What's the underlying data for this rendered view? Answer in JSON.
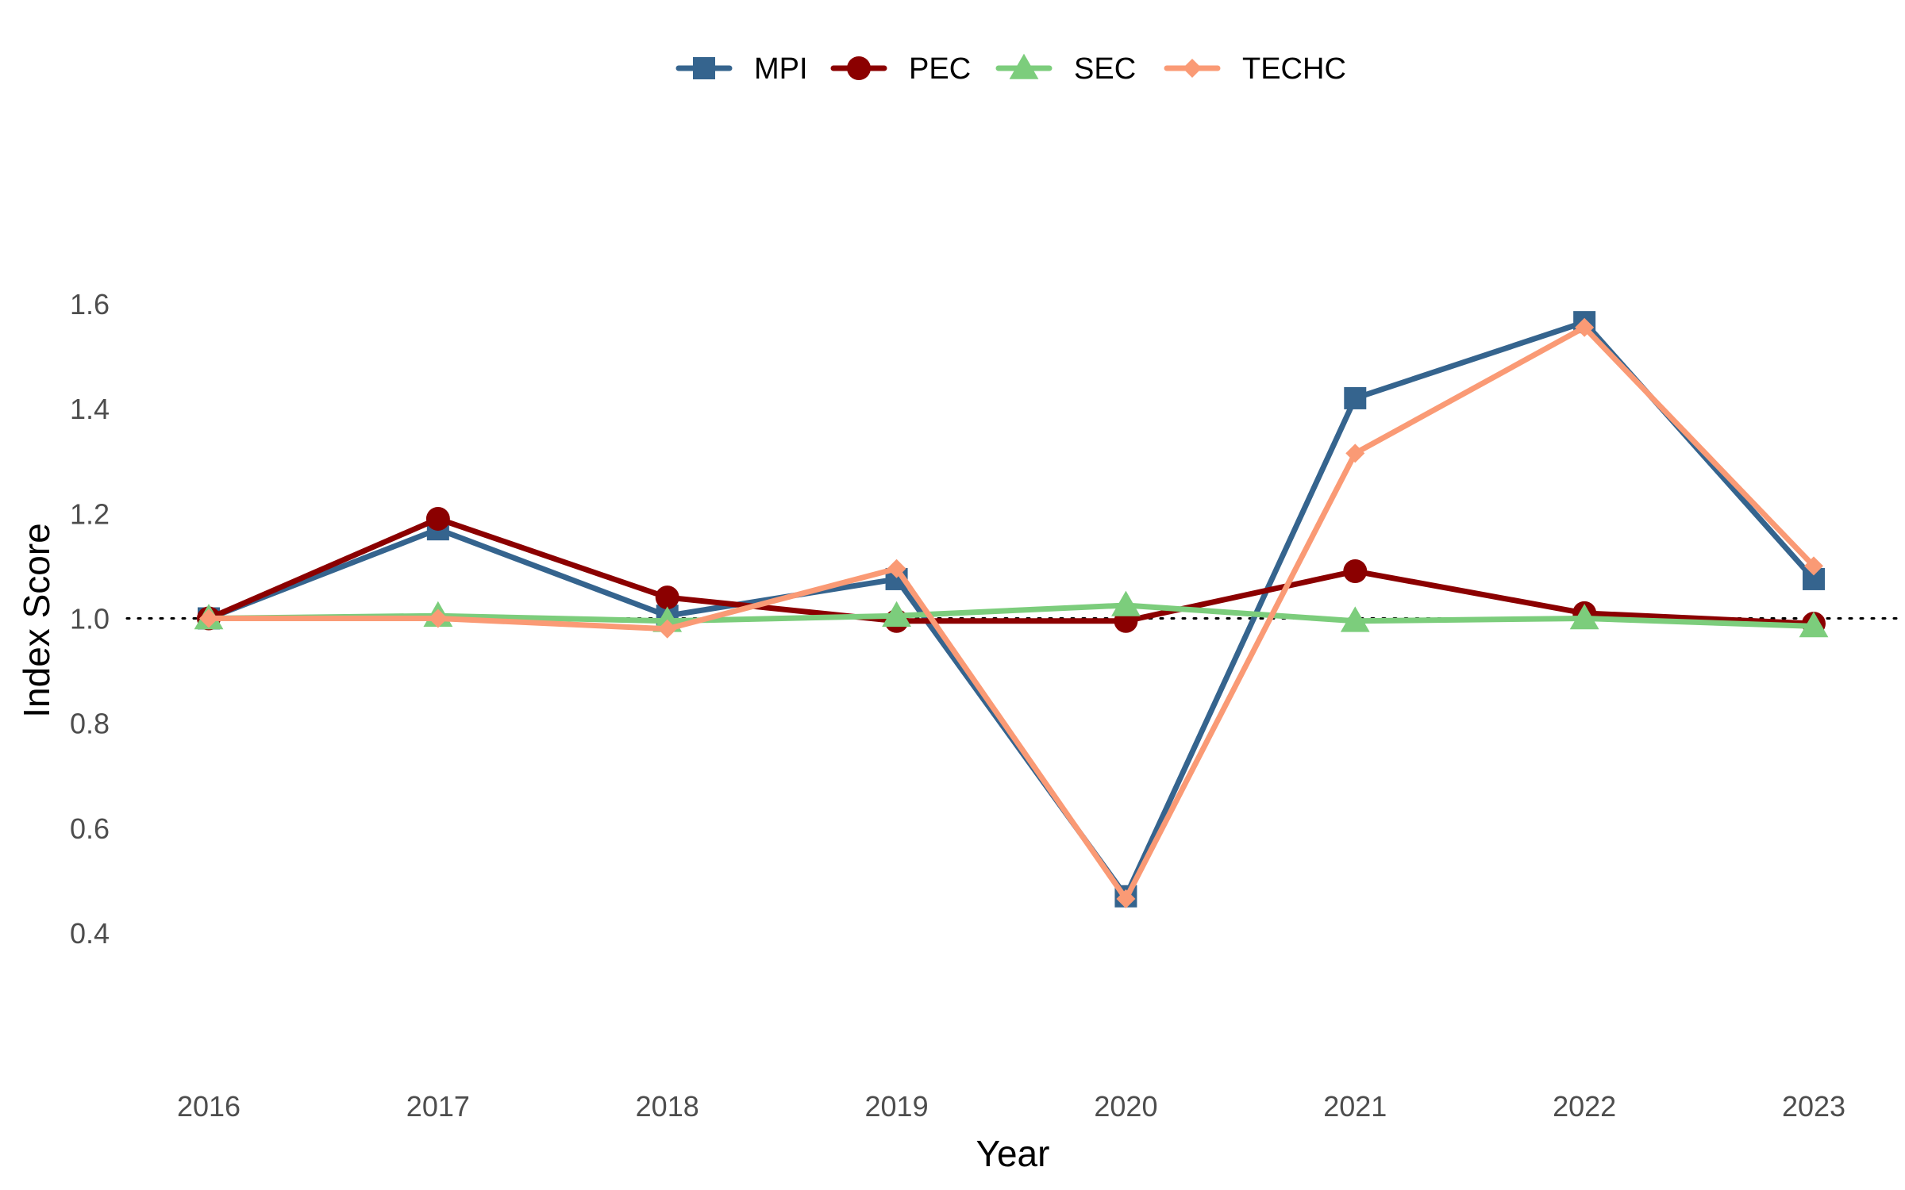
{
  "chart_data": {
    "type": "line",
    "xlabel": "Year",
    "ylabel": "Index Score",
    "categories": [
      "2016",
      "2017",
      "2018",
      "2019",
      "2020",
      "2021",
      "2022",
      "2023"
    ],
    "y_ticks": [
      "0.4",
      "0.6",
      "0.8",
      "1.0",
      "1.2",
      "1.4",
      "1.6"
    ],
    "ylim": [
      0.15,
      1.75
    ],
    "reference_line": 1.0,
    "grid": false,
    "legend_position": "top",
    "series": [
      {
        "name": "MPI",
        "color": "#35648e",
        "marker": "square",
        "values": [
          1.0,
          1.17,
          1.005,
          1.075,
          0.47,
          1.42,
          1.565,
          1.075
        ]
      },
      {
        "name": "PEC",
        "color": "#8b0000",
        "marker": "circle",
        "values": [
          1.0,
          1.19,
          1.04,
          0.995,
          0.995,
          1.09,
          1.01,
          0.99
        ]
      },
      {
        "name": "SEC",
        "color": "#7ccd7c",
        "marker": "triangle",
        "values": [
          1.0,
          1.005,
          0.995,
          1.005,
          1.025,
          0.995,
          1.0,
          0.985
        ]
      },
      {
        "name": "TECHC",
        "color": "#fa9a75",
        "marker": "diamond",
        "values": [
          1.0,
          1.0,
          0.98,
          1.095,
          0.465,
          1.315,
          1.555,
          1.1
        ]
      }
    ]
  }
}
